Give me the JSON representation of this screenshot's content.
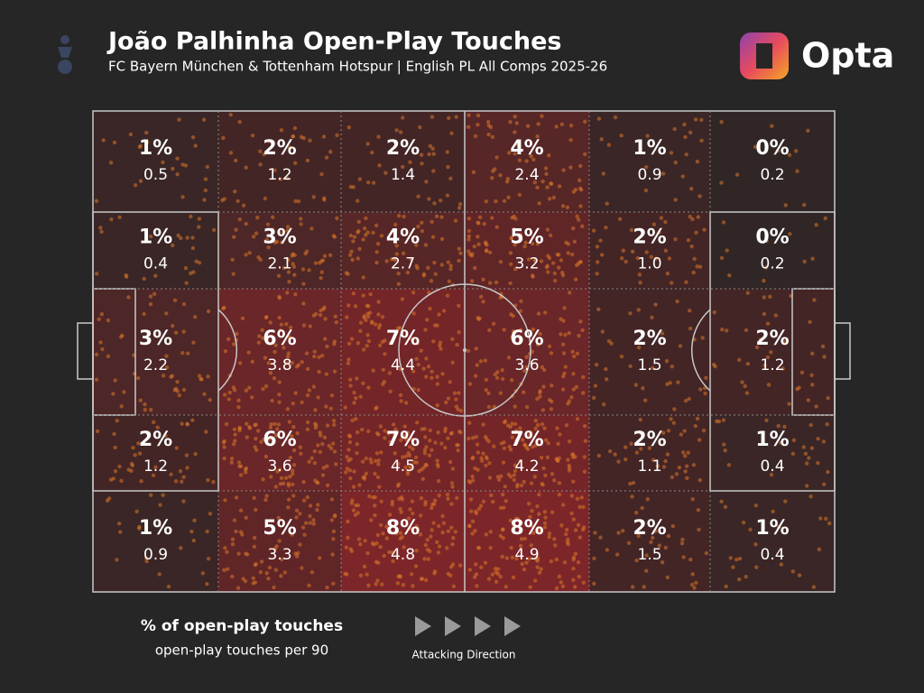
{
  "header": {
    "title": "João Palhinha Open-Play Touches",
    "subtitle": "FC Bayern München & Tottenham Hotspur | English PL All Comps 2025-26",
    "logo": "Opta"
  },
  "chart_data": {
    "type": "pitch-grid",
    "series": [
      {
        "values": [
          1,
          2,
          2,
          4,
          1,
          0
        ],
        "value_labels": [
          "1%",
          "2%",
          "2%",
          "4%",
          "1%",
          "0%"
        ],
        "per90": [
          "0.5",
          "1.2",
          "1.4",
          "2.4",
          "0.9",
          "0.2"
        ]
      },
      {
        "values": [
          1,
          3,
          4,
          5,
          2,
          0
        ],
        "value_labels": [
          "1%",
          "3%",
          "4%",
          "5%",
          "2%",
          "0%"
        ],
        "per90": [
          "0.4",
          "2.1",
          "2.7",
          "3.2",
          "1.0",
          "0.2"
        ]
      },
      {
        "values": [
          3,
          6,
          7,
          6,
          2,
          2
        ],
        "value_labels": [
          "3%",
          "6%",
          "7%",
          "6%",
          "2%",
          "2%"
        ],
        "per90": [
          "2.2",
          "3.8",
          "4.4",
          "3.6",
          "1.5",
          "1.2"
        ]
      },
      {
        "values": [
          2,
          6,
          7,
          7,
          2,
          1
        ],
        "value_labels": [
          "2%",
          "6%",
          "7%",
          "7%",
          "2%",
          "1%"
        ],
        "per90": [
          "1.2",
          "3.6",
          "4.5",
          "4.2",
          "1.1",
          "0.4"
        ]
      },
      {
        "values": [
          1,
          5,
          8,
          8,
          2,
          1
        ],
        "value_labels": [
          "1%",
          "5%",
          "8%",
          "8%",
          "2%",
          "1%"
        ],
        "per90": [
          "0.9",
          "3.3",
          "4.8",
          "4.9",
          "1.5",
          "0.4"
        ]
      }
    ],
    "color": "#b0262a"
  },
  "legend": {
    "primary": "% of open-play touches",
    "secondary": "open-play touches per 90",
    "direction": "Attacking Direction"
  }
}
